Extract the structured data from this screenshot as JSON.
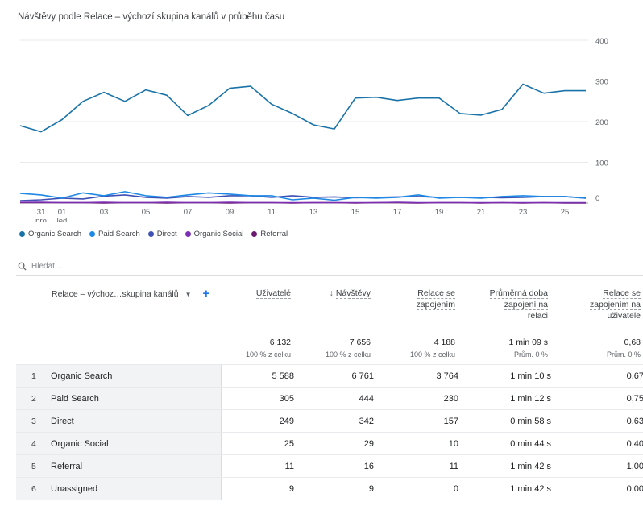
{
  "title": "Návštěvy podle Relace – výchozí skupina kanálů v průběhu času",
  "chart_data": {
    "type": "line",
    "y_ticks": [
      "400",
      "300",
      "200",
      "100",
      "0"
    ],
    "ylim": [
      0,
      400
    ],
    "x_tick_labels": [
      {
        "l1": "31",
        "l2": "pro",
        "i": 1
      },
      {
        "l1": "01",
        "l2": "led",
        "i": 2
      },
      {
        "l1": "03",
        "l2": "",
        "i": 4
      },
      {
        "l1": "05",
        "l2": "",
        "i": 6
      },
      {
        "l1": "07",
        "l2": "",
        "i": 8
      },
      {
        "l1": "09",
        "l2": "",
        "i": 10
      },
      {
        "l1": "11",
        "l2": "",
        "i": 12
      },
      {
        "l1": "13",
        "l2": "",
        "i": 14
      },
      {
        "l1": "15",
        "l2": "",
        "i": 16
      },
      {
        "l1": "17",
        "l2": "",
        "i": 18
      },
      {
        "l1": "19",
        "l2": "",
        "i": 20
      },
      {
        "l1": "21",
        "l2": "",
        "i": 22
      },
      {
        "l1": "23",
        "l2": "",
        "i": 24
      },
      {
        "l1": "25",
        "l2": "",
        "i": 26
      }
    ],
    "series": [
      {
        "name": "Organic Search",
        "color": "#1a73a8",
        "values": [
          190,
          175,
          205,
          250,
          272,
          250,
          278,
          265,
          215,
          240,
          282,
          287,
          243,
          220,
          192,
          182,
          258,
          260,
          252,
          258,
          258,
          220,
          216,
          230,
          292,
          270,
          276,
          276
        ]
      },
      {
        "name": "Paid Search",
        "color": "#1e88e5",
        "values": [
          24,
          20,
          12,
          25,
          18,
          28,
          18,
          14,
          20,
          25,
          22,
          18,
          18,
          8,
          12,
          7,
          14,
          12,
          14,
          20,
          12,
          14,
          12,
          16,
          18,
          16,
          16,
          12
        ]
      },
      {
        "name": "Direct",
        "color": "#3f51b5",
        "values": [
          6,
          8,
          12,
          10,
          17,
          20,
          14,
          12,
          16,
          14,
          18,
          18,
          14,
          18,
          14,
          15,
          13,
          14,
          15,
          16,
          14,
          14,
          14,
          13,
          14,
          16,
          16,
          12
        ]
      },
      {
        "name": "Organic Social",
        "color": "#7b2fb5",
        "values": [
          2,
          2,
          1,
          1,
          2,
          1,
          1,
          2,
          1,
          1,
          2,
          1,
          1,
          1,
          1,
          1,
          1,
          1,
          2,
          1,
          1,
          1,
          1,
          1,
          1,
          1,
          1,
          1
        ]
      },
      {
        "name": "Referral",
        "color": "#6a1b6e",
        "values": [
          1,
          1,
          1,
          1,
          0,
          1,
          1,
          0,
          1,
          1,
          0,
          1,
          1,
          0,
          1,
          1,
          0,
          1,
          1,
          0,
          1,
          1,
          0,
          1,
          0,
          1,
          0,
          0
        ]
      }
    ]
  },
  "search": {
    "placeholder": "Hledat…"
  },
  "table": {
    "dimension_header": "Relace – výchoz…skupina kanálů",
    "columns": [
      {
        "lines": [
          "Uživatelé"
        ],
        "total": "6 132",
        "pct": "100 % z celku",
        "sorted": false
      },
      {
        "lines": [
          "Návštěvy"
        ],
        "total": "7 656",
        "pct": "100 % z celku",
        "sorted": true
      },
      {
        "lines": [
          "Relace se",
          "zapojením"
        ],
        "total": "4 188",
        "pct": "100 % z celku",
        "sorted": false
      },
      {
        "lines": [
          "Průměrná doba",
          "zapojení na",
          "relaci"
        ],
        "total": "1 min 09 s",
        "pct": "Prům. 0 %",
        "sorted": false
      },
      {
        "lines": [
          "Relace se",
          "zapojením na",
          "uživatele"
        ],
        "total": "0,68",
        "pct": "Prům. 0 %",
        "sorted": false
      }
    ],
    "rows": [
      {
        "n": "1",
        "name": "Organic Search",
        "v": [
          "5 588",
          "6 761",
          "3 764",
          "1 min 10 s",
          "0,67"
        ]
      },
      {
        "n": "2",
        "name": "Paid Search",
        "v": [
          "305",
          "444",
          "230",
          "1 min 12 s",
          "0,75"
        ]
      },
      {
        "n": "3",
        "name": "Direct",
        "v": [
          "249",
          "342",
          "157",
          "0 min 58 s",
          "0,63"
        ]
      },
      {
        "n": "4",
        "name": "Organic Social",
        "v": [
          "25",
          "29",
          "10",
          "0 min 44 s",
          "0,40"
        ]
      },
      {
        "n": "5",
        "name": "Referral",
        "v": [
          "11",
          "16",
          "11",
          "1 min 42 s",
          "1,00"
        ]
      },
      {
        "n": "6",
        "name": "Unassigned",
        "v": [
          "9",
          "9",
          "0",
          "1 min 42 s",
          "0,00"
        ]
      }
    ]
  }
}
